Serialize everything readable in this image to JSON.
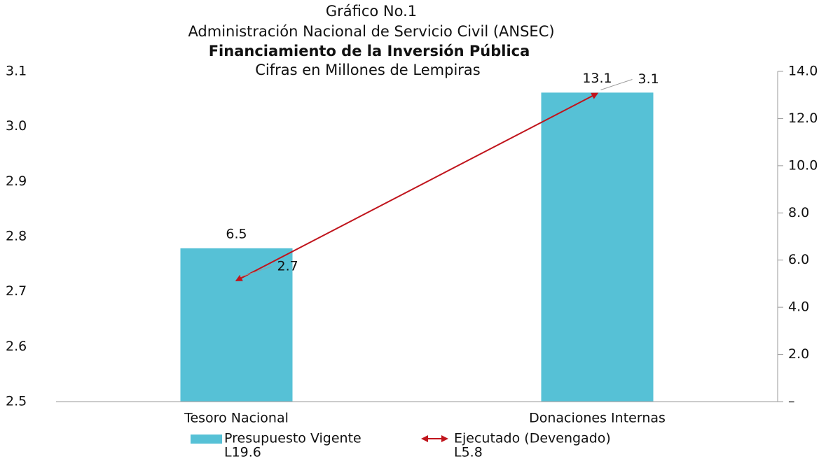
{
  "chart_data": {
    "type": "bar",
    "supertitle": [
      "Gráfico No.1",
      "Administración Nacional de Servicio Civil (ANSEC)"
    ],
    "title": "Financiamiento de la Inversión Pública",
    "subtitle": "Cifras en Millones de Lempiras",
    "categories": [
      "Tesoro Nacional",
      "Donaciones Internas"
    ],
    "series": [
      {
        "name": "Presupuesto Vigente",
        "legend_subtitle": "L19.6",
        "color": "#56c1d6",
        "type": "bar",
        "axis": "y2",
        "values": [
          6.5,
          13.1
        ]
      },
      {
        "name": "Ejecutado (Devengado)",
        "legend_subtitle": "L5.8",
        "color": "#c0141c",
        "type": "line",
        "values": [
          2.72,
          3.06
        ],
        "value_labels": [
          "2.7",
          "3.1"
        ]
      }
    ],
    "ylim": [
      2.5,
      3.1
    ],
    "yticks": [
      2.5,
      2.6,
      2.7,
      2.8,
      2.9,
      {
        "value": 3,
        "label": "3.0"
      },
      3.1
    ],
    "y2lim": [
      0,
      14
    ],
    "y2ticks": [
      {
        "value": 0,
        "label": "–"
      },
      {
        "value": 2,
        "label": "2.0"
      },
      {
        "value": 4,
        "label": "4.0"
      },
      {
        "value": 6,
        "label": "6.0"
      },
      {
        "value": 8,
        "label": "8.0"
      },
      {
        "value": 10,
        "label": "10.0"
      },
      {
        "value": 12,
        "label": "12.0"
      },
      {
        "value": 14,
        "label": "14.0"
      }
    ],
    "legend": "bottom"
  }
}
